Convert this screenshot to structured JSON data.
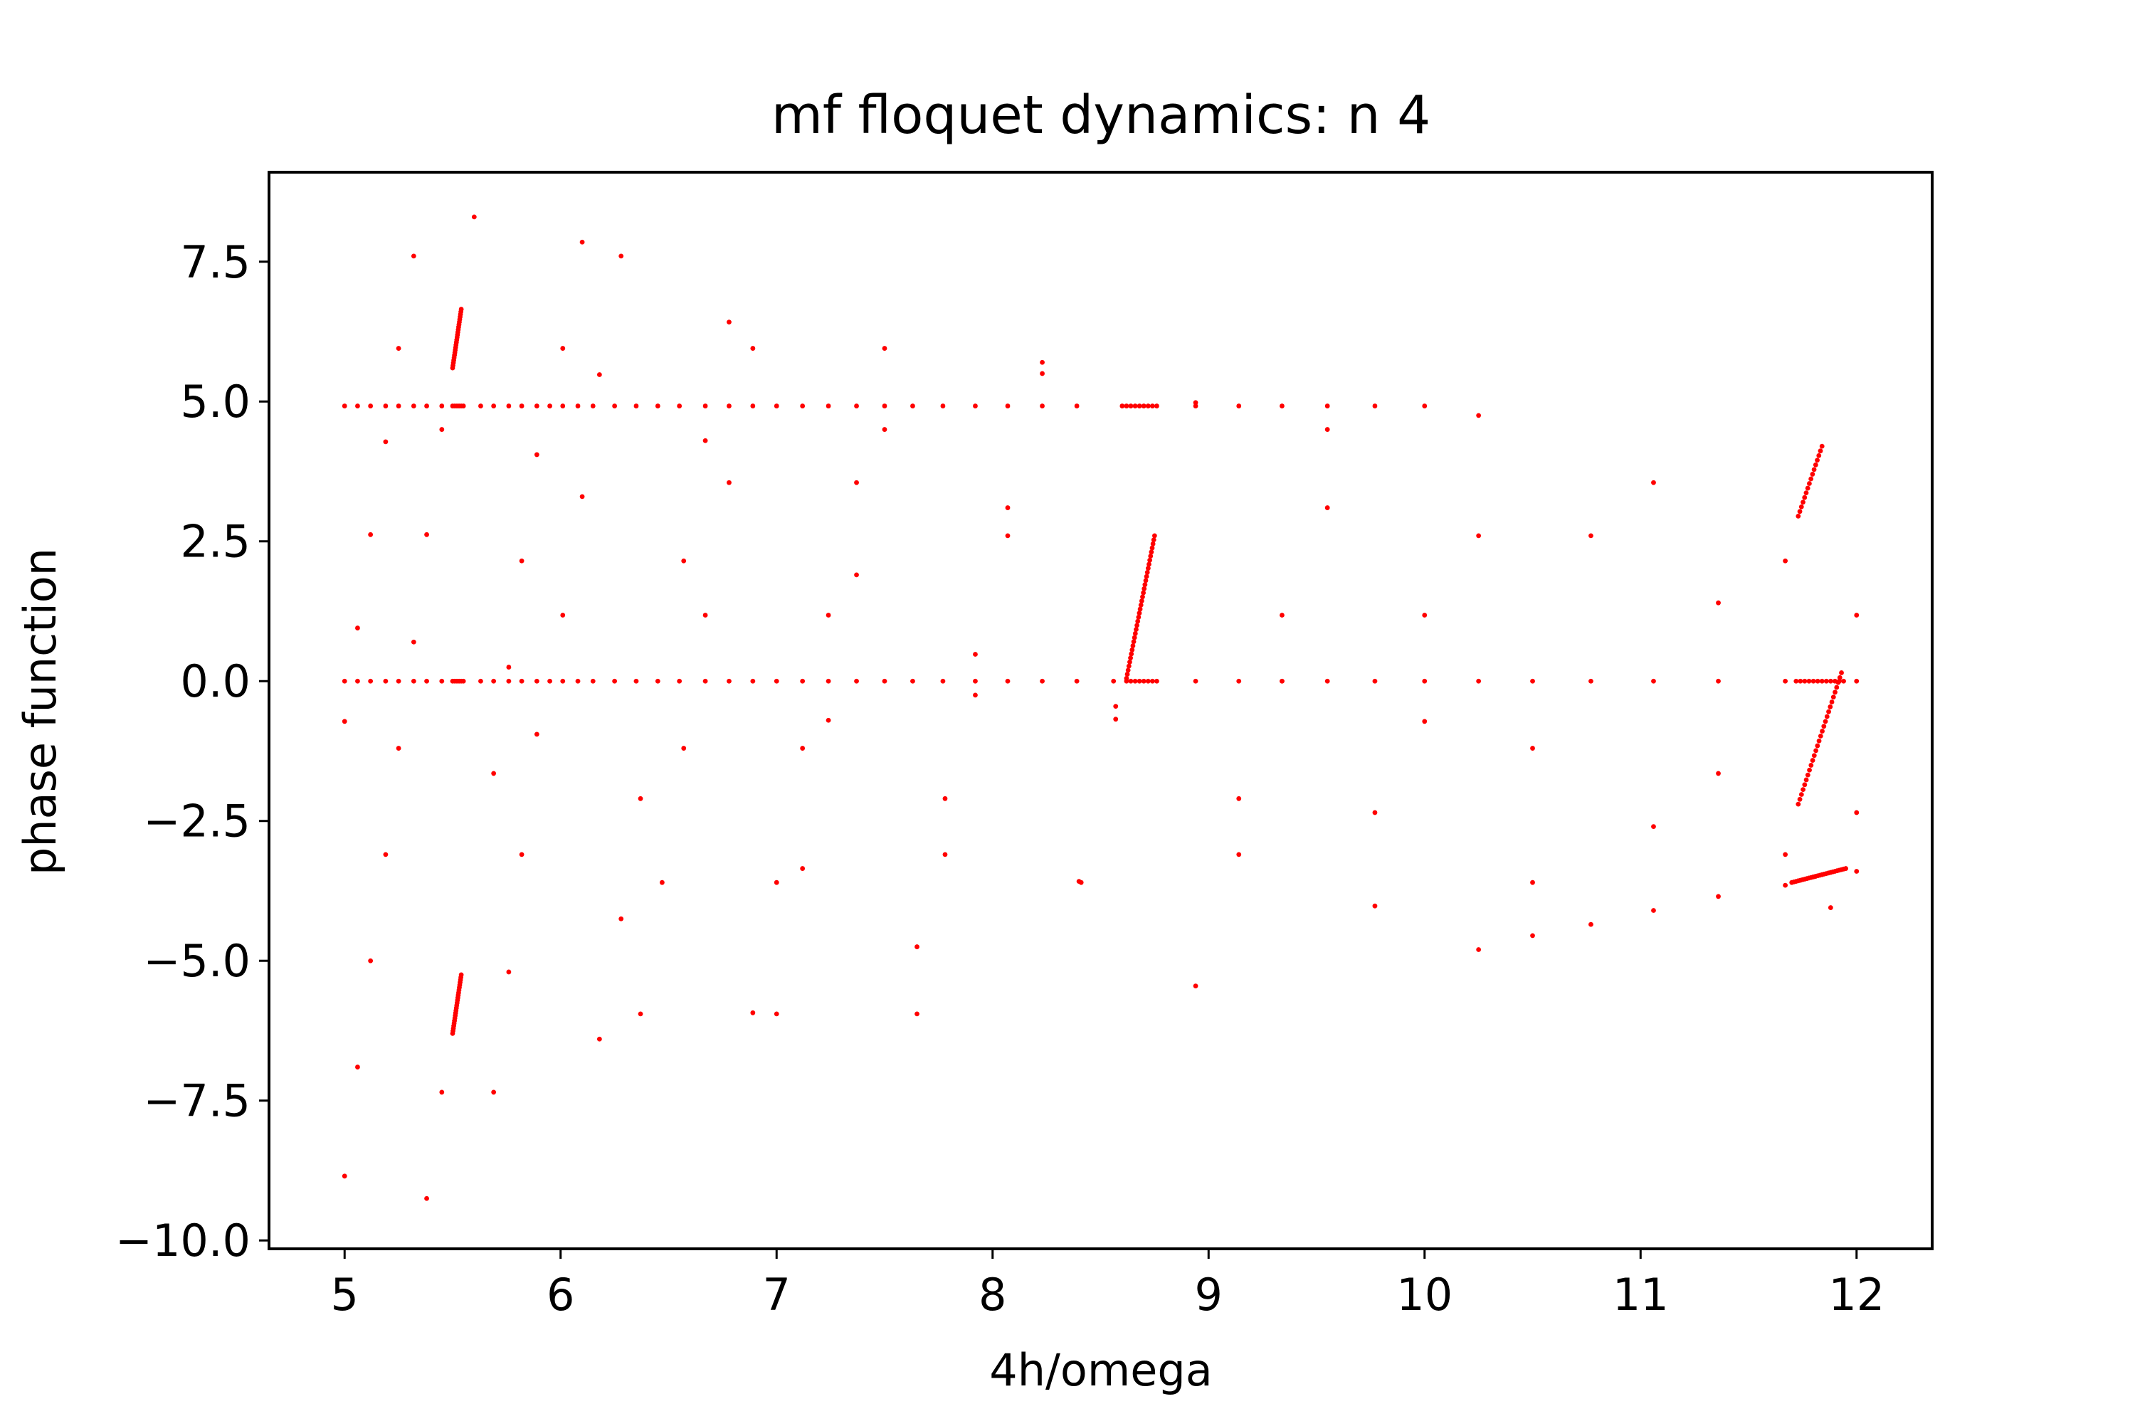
{
  "chart_data": {
    "type": "scatter",
    "title": "mf floquet dynamics: n 4",
    "xlabel": "4h/omega",
    "ylabel": "phase function",
    "xlim": [
      4.65,
      12.35
    ],
    "ylim": [
      -10.15,
      9.1
    ],
    "xticks": [
      5,
      6,
      7,
      8,
      9,
      10,
      11,
      12
    ],
    "yticks": [
      -10.0,
      -7.5,
      -5.0,
      -2.5,
      0.0,
      2.5,
      5.0,
      7.5
    ],
    "xtick_labels": [
      "5",
      "6",
      "7",
      "8",
      "9",
      "10",
      "11",
      "12"
    ],
    "ytick_labels": [
      "−10.0",
      "−7.5",
      "−5.0",
      "−2.5",
      "0.0",
      "2.5",
      "5.0",
      "7.5"
    ],
    "grid": false,
    "marker_color": "#ff0000",
    "series": [
      {
        "points": [
          [
            5.0,
            4.92
          ],
          [
            5.06,
            4.92
          ],
          [
            5.12,
            4.92
          ],
          [
            5.19,
            4.92
          ],
          [
            5.25,
            4.92
          ],
          [
            5.32,
            4.92
          ],
          [
            5.38,
            4.92
          ],
          [
            5.45,
            4.92
          ],
          [
            5.5,
            4.92
          ],
          [
            5.51,
            4.92
          ],
          [
            5.52,
            4.92
          ],
          [
            5.53,
            4.92
          ],
          [
            5.54,
            4.92
          ],
          [
            5.55,
            4.92
          ],
          [
            5.63,
            4.92
          ],
          [
            5.69,
            4.92
          ],
          [
            5.76,
            4.92
          ],
          [
            5.82,
            4.92
          ],
          [
            5.89,
            4.92
          ],
          [
            5.95,
            4.92
          ],
          [
            6.01,
            4.92
          ],
          [
            6.08,
            4.92
          ],
          [
            6.15,
            4.92
          ],
          [
            6.25,
            4.92
          ],
          [
            6.35,
            4.92
          ],
          [
            6.45,
            4.92
          ],
          [
            6.55,
            4.92
          ],
          [
            6.67,
            4.92
          ],
          [
            6.78,
            4.92
          ],
          [
            6.89,
            4.92
          ],
          [
            7.0,
            4.92
          ],
          [
            7.12,
            4.92
          ],
          [
            7.24,
            4.92
          ],
          [
            7.37,
            4.92
          ],
          [
            7.5,
            4.92
          ],
          [
            7.63,
            4.92
          ],
          [
            7.77,
            4.92
          ],
          [
            7.92,
            4.92
          ],
          [
            8.07,
            4.92
          ],
          [
            8.23,
            4.92
          ],
          [
            8.39,
            4.92
          ],
          [
            8.6,
            4.92
          ],
          [
            8.62,
            4.92
          ],
          [
            8.64,
            4.92
          ],
          [
            8.66,
            4.92
          ],
          [
            8.68,
            4.92
          ],
          [
            8.7,
            4.92
          ],
          [
            8.72,
            4.92
          ],
          [
            8.74,
            4.92
          ],
          [
            8.76,
            4.92
          ],
          [
            8.94,
            4.92
          ],
          [
            9.14,
            4.92
          ],
          [
            9.34,
            4.92
          ],
          [
            9.55,
            4.92
          ],
          [
            9.77,
            4.92
          ],
          [
            10.0,
            4.92
          ],
          [
            5.0,
            0.0
          ],
          [
            5.06,
            0.0
          ],
          [
            5.12,
            0.0
          ],
          [
            5.19,
            0.0
          ],
          [
            5.25,
            0.0
          ],
          [
            5.32,
            0.0
          ],
          [
            5.38,
            0.0
          ],
          [
            5.45,
            0.0
          ],
          [
            5.5,
            0.0
          ],
          [
            5.51,
            0.0
          ],
          [
            5.52,
            0.0
          ],
          [
            5.53,
            0.0
          ],
          [
            5.54,
            0.0
          ],
          [
            5.55,
            0.0
          ],
          [
            5.63,
            0.0
          ],
          [
            5.69,
            0.0
          ],
          [
            5.76,
            0.0
          ],
          [
            5.82,
            0.0
          ],
          [
            5.89,
            0.0
          ],
          [
            5.95,
            0.0
          ],
          [
            6.01,
            0.0
          ],
          [
            6.08,
            0.0
          ],
          [
            6.15,
            0.0
          ],
          [
            6.25,
            0.0
          ],
          [
            6.35,
            0.0
          ],
          [
            6.45,
            0.0
          ],
          [
            6.55,
            0.0
          ],
          [
            6.67,
            0.0
          ],
          [
            6.78,
            0.0
          ],
          [
            6.89,
            0.0
          ],
          [
            7.0,
            0.0
          ],
          [
            7.12,
            0.0
          ],
          [
            7.24,
            0.0
          ],
          [
            7.37,
            0.0
          ],
          [
            7.5,
            0.0
          ],
          [
            7.63,
            0.0
          ],
          [
            7.77,
            0.0
          ],
          [
            7.92,
            0.0
          ],
          [
            8.07,
            0.0
          ],
          [
            8.23,
            0.0
          ],
          [
            8.39,
            0.0
          ],
          [
            8.56,
            0.0
          ],
          [
            8.62,
            0.0
          ],
          [
            8.64,
            0.0
          ],
          [
            8.66,
            0.0
          ],
          [
            8.68,
            0.0
          ],
          [
            8.7,
            0.0
          ],
          [
            8.72,
            0.0
          ],
          [
            8.74,
            0.0
          ],
          [
            8.76,
            0.0
          ],
          [
            8.94,
            0.0
          ],
          [
            9.14,
            0.0
          ],
          [
            9.34,
            0.0
          ],
          [
            9.55,
            0.0
          ],
          [
            9.77,
            0.0
          ],
          [
            10.0,
            0.0
          ],
          [
            10.25,
            0.0
          ],
          [
            10.5,
            0.0
          ],
          [
            10.77,
            0.0
          ],
          [
            11.06,
            0.0
          ],
          [
            11.36,
            0.0
          ],
          [
            11.67,
            0.0
          ],
          [
            11.72,
            0.0
          ],
          [
            11.74,
            0.0
          ],
          [
            11.76,
            0.0
          ],
          [
            11.78,
            0.0
          ],
          [
            11.8,
            0.0
          ],
          [
            11.82,
            0.0
          ],
          [
            11.84,
            0.0
          ],
          [
            11.86,
            0.0
          ],
          [
            11.88,
            0.0
          ],
          [
            11.9,
            0.0
          ],
          [
            11.92,
            0.0
          ],
          [
            11.94,
            0.0
          ],
          [
            12.0,
            0.0
          ],
          [
            5.0,
            -0.72
          ],
          [
            5.0,
            -8.85
          ],
          [
            5.06,
            0.95
          ],
          [
            5.06,
            -6.9
          ],
          [
            5.12,
            2.62
          ],
          [
            5.12,
            -5.0
          ],
          [
            5.19,
            4.28
          ],
          [
            5.19,
            -3.1
          ],
          [
            5.25,
            5.95
          ],
          [
            5.25,
            -1.2
          ],
          [
            5.32,
            7.6
          ],
          [
            5.32,
            0.7
          ],
          [
            5.38,
            2.62
          ],
          [
            5.38,
            -9.25
          ],
          [
            5.45,
            4.5
          ],
          [
            5.45,
            -7.35
          ],
          [
            5.6,
            8.3
          ],
          [
            5.69,
            -1.65
          ],
          [
            5.69,
            -7.35
          ],
          [
            5.76,
            0.25
          ],
          [
            5.76,
            -5.2
          ],
          [
            5.82,
            2.15
          ],
          [
            5.82,
            -3.1
          ],
          [
            5.89,
            4.05
          ],
          [
            5.89,
            -0.95
          ],
          [
            6.01,
            5.95
          ],
          [
            6.01,
            1.18
          ],
          [
            6.1,
            7.85
          ],
          [
            6.1,
            3.3
          ],
          [
            6.18,
            5.48
          ],
          [
            6.18,
            -6.4
          ],
          [
            6.28,
            7.6
          ],
          [
            6.28,
            -4.25
          ],
          [
            6.37,
            -2.1
          ],
          [
            6.37,
            -5.95
          ],
          [
            6.47,
            -3.6
          ],
          [
            6.57,
            2.15
          ],
          [
            6.57,
            -1.2
          ],
          [
            6.67,
            4.3
          ],
          [
            6.67,
            1.18
          ],
          [
            6.78,
            6.42
          ],
          [
            6.78,
            3.55
          ],
          [
            6.89,
            5.95
          ],
          [
            6.89,
            -5.93
          ],
          [
            7.0,
            -3.6
          ],
          [
            7.0,
            -5.95
          ],
          [
            7.12,
            -1.2
          ],
          [
            7.12,
            -3.35
          ],
          [
            7.24,
            1.18
          ],
          [
            7.24,
            -0.7
          ],
          [
            7.37,
            3.55
          ],
          [
            7.37,
            1.9
          ],
          [
            7.5,
            5.95
          ],
          [
            7.5,
            4.5
          ],
          [
            7.65,
            -4.75
          ],
          [
            7.65,
            -5.95
          ],
          [
            7.78,
            -2.1
          ],
          [
            7.78,
            -3.1
          ],
          [
            7.92,
            0.48
          ],
          [
            7.92,
            -0.25
          ],
          [
            8.07,
            3.1
          ],
          [
            8.07,
            2.6
          ],
          [
            8.23,
            5.7
          ],
          [
            8.23,
            5.5
          ],
          [
            8.4,
            -3.58
          ],
          [
            8.41,
            -3.6
          ],
          [
            8.57,
            -0.45
          ],
          [
            8.57,
            -0.68
          ],
          [
            8.94,
            4.98
          ],
          [
            8.94,
            -5.45
          ],
          [
            9.14,
            -2.1
          ],
          [
            9.14,
            -3.1
          ],
          [
            9.34,
            1.18
          ],
          [
            9.34,
            0.0
          ],
          [
            9.55,
            4.5
          ],
          [
            9.55,
            3.1
          ],
          [
            9.77,
            -2.35
          ],
          [
            9.77,
            -4.02
          ],
          [
            10.0,
            1.18
          ],
          [
            10.0,
            -0.72
          ],
          [
            10.25,
            4.75
          ],
          [
            10.25,
            2.6
          ],
          [
            10.25,
            -4.8
          ],
          [
            10.5,
            -1.2
          ],
          [
            10.5,
            -3.6
          ],
          [
            10.5,
            -4.55
          ],
          [
            10.77,
            2.6
          ],
          [
            10.77,
            -4.35
          ],
          [
            11.06,
            3.55
          ],
          [
            11.06,
            -2.6
          ],
          [
            11.06,
            -4.1
          ],
          [
            11.36,
            1.4
          ],
          [
            11.36,
            -1.65
          ],
          [
            11.36,
            -3.85
          ],
          [
            11.67,
            2.15
          ],
          [
            11.67,
            -3.1
          ],
          [
            11.67,
            -3.65
          ],
          [
            11.88,
            -4.05
          ],
          [
            12.0,
            1.18
          ],
          [
            12.0,
            -2.35
          ],
          [
            12.0,
            -3.4
          ]
        ],
        "segments": [
          {
            "x1": 5.5,
            "y1": 5.6,
            "x2": 5.54,
            "y2": 6.65,
            "n": 24
          },
          {
            "x1": 5.5,
            "y1": -6.3,
            "x2": 5.54,
            "y2": -5.25,
            "n": 24
          },
          {
            "x1": 8.62,
            "y1": 0.05,
            "x2": 8.75,
            "y2": 2.6,
            "n": 36
          },
          {
            "x1": 11.73,
            "y1": 2.95,
            "x2": 11.84,
            "y2": 4.2,
            "n": 16
          },
          {
            "x1": 11.73,
            "y1": -2.2,
            "x2": 11.93,
            "y2": 0.15,
            "n": 28
          },
          {
            "x1": 11.7,
            "y1": -3.6,
            "x2": 11.95,
            "y2": -3.35,
            "n": 26
          }
        ]
      }
    ]
  }
}
